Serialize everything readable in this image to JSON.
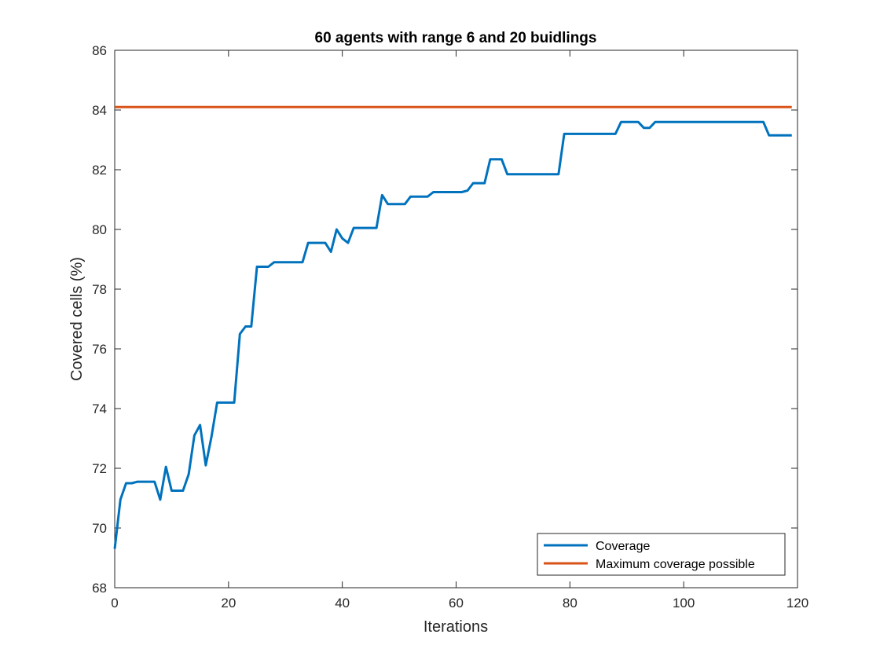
{
  "chart_data": {
    "type": "line",
    "title": "60 agents with range 6 and 20 buidlings",
    "xlabel": "Iterations",
    "ylabel": "Covered cells (%)",
    "xlim": [
      0,
      120
    ],
    "ylim": [
      68,
      86
    ],
    "xticks": [
      0,
      20,
      40,
      60,
      80,
      100,
      120
    ],
    "yticks": [
      68,
      70,
      72,
      74,
      76,
      78,
      80,
      82,
      84,
      86
    ],
    "xtick_labels": [
      "0",
      "20",
      "40",
      "60",
      "80",
      "100",
      "120"
    ],
    "ytick_labels": [
      "68",
      "70",
      "72",
      "74",
      "76",
      "78",
      "80",
      "82",
      "84",
      "86"
    ],
    "grid": false,
    "legend_position": "bottom-right",
    "series": [
      {
        "name": "Coverage",
        "color": "#0072BD",
        "x": [
          0,
          1,
          2,
          3,
          4,
          5,
          6,
          7,
          8,
          9,
          10,
          11,
          12,
          13,
          14,
          15,
          16,
          17,
          18,
          19,
          20,
          21,
          22,
          23,
          24,
          25,
          26,
          27,
          28,
          29,
          30,
          31,
          32,
          33,
          34,
          35,
          36,
          37,
          38,
          39,
          40,
          41,
          42,
          43,
          44,
          45,
          46,
          47,
          48,
          49,
          50,
          51,
          52,
          53,
          54,
          55,
          56,
          57,
          58,
          59,
          60,
          61,
          62,
          63,
          64,
          65,
          66,
          67,
          68,
          69,
          70,
          71,
          72,
          73,
          74,
          75,
          76,
          77,
          78,
          79,
          80,
          81,
          82,
          83,
          84,
          85,
          86,
          87,
          88,
          89,
          90,
          91,
          92,
          93,
          94,
          95,
          96,
          97,
          98,
          99,
          100,
          101,
          102,
          103,
          104,
          105,
          106,
          107,
          108,
          109,
          110,
          111,
          112,
          113,
          114,
          115,
          116,
          117,
          118,
          119
        ],
        "y": [
          69.3,
          70.95,
          71.5,
          71.5,
          71.55,
          71.55,
          71.55,
          71.55,
          70.95,
          72.05,
          71.25,
          71.25,
          71.25,
          71.8,
          73.1,
          73.45,
          72.1,
          73.05,
          74.2,
          74.2,
          74.2,
          74.2,
          76.5,
          76.75,
          76.75,
          78.75,
          78.75,
          78.75,
          78.9,
          78.9,
          78.9,
          78.9,
          78.9,
          78.9,
          79.55,
          79.55,
          79.55,
          79.55,
          79.25,
          80.0,
          79.7,
          79.55,
          80.05,
          80.05,
          80.05,
          80.05,
          80.05,
          81.15,
          80.85,
          80.85,
          80.85,
          80.85,
          81.1,
          81.1,
          81.1,
          81.1,
          81.25,
          81.25,
          81.25,
          81.25,
          81.25,
          81.25,
          81.3,
          81.55,
          81.55,
          81.55,
          82.35,
          82.35,
          82.35,
          81.85,
          81.85,
          81.85,
          81.85,
          81.85,
          81.85,
          81.85,
          81.85,
          81.85,
          81.85,
          83.2,
          83.2,
          83.2,
          83.2,
          83.2,
          83.2,
          83.2,
          83.2,
          83.2,
          83.2,
          83.6,
          83.6,
          83.6,
          83.6,
          83.4,
          83.4,
          83.6,
          83.6,
          83.6,
          83.6,
          83.6,
          83.6,
          83.6,
          83.6,
          83.6,
          83.6,
          83.6,
          83.6,
          83.6,
          83.6,
          83.6,
          83.6,
          83.6,
          83.6,
          83.6,
          83.6,
          83.15,
          83.15,
          83.15,
          83.15,
          83.15
        ]
      },
      {
        "name": "Maximum coverage possible",
        "color": "#D95319",
        "x": [
          0,
          119
        ],
        "y": [
          84.1,
          84.1
        ]
      }
    ]
  }
}
